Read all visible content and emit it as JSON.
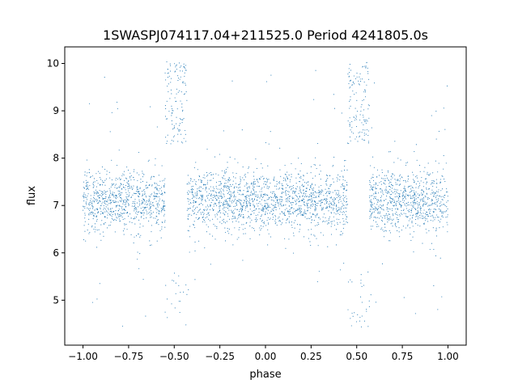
{
  "chart_data": {
    "type": "scatter",
    "title": "1SWASPJ074117.04+211525.0 Period 4241805.0s",
    "xlabel": "phase",
    "ylabel": "flux",
    "xlim": [
      -1.1,
      1.1
    ],
    "ylim": [
      4.05,
      10.35
    ],
    "xticks": [
      -1.0,
      -0.75,
      -0.5,
      -0.25,
      0.0,
      0.25,
      0.5,
      0.75,
      1.0
    ],
    "xtick_labels": [
      "−1.00",
      "−0.75",
      "−0.50",
      "−0.25",
      "0.00",
      "0.25",
      "0.50",
      "0.75",
      "1.00"
    ],
    "yticks": [
      5,
      6,
      7,
      8,
      9,
      10
    ],
    "ytick_labels": [
      "5",
      "6",
      "7",
      "8",
      "9",
      "10"
    ],
    "grid": false,
    "legend": false,
    "marker_color": "#1f77b4",
    "series": [
      {
        "x_range": [
          -1.0,
          1.0
        ],
        "typical_flux": 7.1,
        "flux_range": [
          4.3,
          10.05
        ],
        "points": [
          [
            -1.0,
            7.2
          ],
          [
            -0.95,
            7.0
          ],
          [
            -0.9,
            7.3
          ],
          [
            -0.85,
            7.1
          ],
          [
            -0.8,
            7.2
          ],
          [
            -0.75,
            7.0
          ],
          [
            -0.7,
            7.3
          ],
          [
            -0.65,
            7.1
          ],
          [
            -0.6,
            7.2
          ],
          [
            -0.54,
            9.2
          ],
          [
            -0.52,
            9.6
          ],
          [
            -0.46,
            9.4
          ],
          [
            -0.44,
            9.9
          ],
          [
            -0.35,
            7.1
          ],
          [
            -0.3,
            7.0
          ],
          [
            -0.25,
            7.2
          ],
          [
            -0.2,
            6.9
          ],
          [
            -0.15,
            7.1
          ],
          [
            -0.1,
            7.0
          ],
          [
            -0.05,
            7.2
          ],
          [
            0.0,
            7.1
          ],
          [
            0.05,
            7.2
          ],
          [
            0.1,
            7.0
          ],
          [
            0.15,
            7.3
          ],
          [
            0.2,
            7.1
          ],
          [
            0.25,
            7.2
          ],
          [
            0.3,
            7.0
          ],
          [
            0.35,
            7.3
          ],
          [
            0.4,
            7.1
          ],
          [
            0.46,
            9.2
          ],
          [
            0.48,
            9.6
          ],
          [
            0.54,
            9.4
          ],
          [
            0.56,
            9.9
          ],
          [
            0.65,
            7.1
          ],
          [
            0.7,
            7.0
          ],
          [
            0.75,
            7.2
          ],
          [
            0.8,
            6.9
          ],
          [
            0.85,
            7.1
          ],
          [
            0.9,
            7.0
          ],
          [
            0.95,
            7.2
          ],
          [
            1.0,
            7.1
          ]
        ]
      }
    ]
  }
}
